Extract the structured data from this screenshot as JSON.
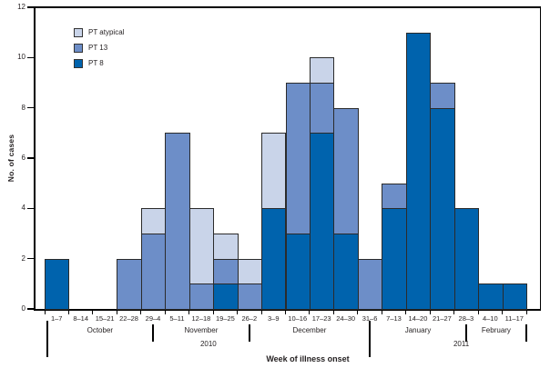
{
  "chart_data": {
    "type": "bar",
    "stacked": true,
    "stack_order": "bottom-to-top",
    "xlabel": "Week of illness onset",
    "ylabel": "No. of cases",
    "ylim": [
      0,
      12
    ],
    "yticks": [
      0,
      2,
      4,
      6,
      8,
      10,
      12
    ],
    "grid": false,
    "categories": [
      "1–7",
      "8–14",
      "15–21",
      "22–28",
      "29–4",
      "5–11",
      "12–18",
      "19–25",
      "26–2",
      "3–9",
      "10–16",
      "17–23",
      "24–30",
      "31–6",
      "7–13",
      "14–20",
      "21–27",
      "28–3",
      "4–10",
      "11–17"
    ],
    "series": [
      {
        "name": "PT 8",
        "color": "#0063ad",
        "values": [
          2,
          0,
          0,
          0,
          0,
          0,
          0,
          1,
          0,
          4,
          3,
          7,
          3,
          0,
          4,
          11,
          8,
          4,
          1,
          1
        ]
      },
      {
        "name": "PT 13",
        "color": "#6d8ec8",
        "values": [
          0,
          0,
          0,
          2,
          3,
          7,
          1,
          1,
          1,
          0,
          6,
          2,
          5,
          2,
          1,
          0,
          1,
          0,
          0,
          0
        ]
      },
      {
        "name": "PT atypical",
        "color": "#c9d4e9",
        "values": [
          0,
          0,
          0,
          0,
          1,
          0,
          3,
          1,
          1,
          3,
          0,
          1,
          0,
          0,
          0,
          0,
          0,
          0,
          0,
          0
        ]
      }
    ],
    "legend": {
      "position": "top-left",
      "items": [
        {
          "label": "PT atypical",
          "color": "#c9d4e9"
        },
        {
          "label": "PT 13",
          "color": "#6d8ec8"
        },
        {
          "label": "PT 8",
          "color": "#0063ad"
        }
      ]
    },
    "months": [
      {
        "label": "October",
        "center_week": 2.3
      },
      {
        "label": "November",
        "center_week": 6.5
      },
      {
        "label": "December",
        "center_week": 11.0
      },
      {
        "label": "January",
        "center_week": 15.5
      },
      {
        "label": "February",
        "center_week": 18.75
      }
    ],
    "month_separators": [
      {
        "week": 0.12,
        "long": true
      },
      {
        "week": 4.5,
        "long": false
      },
      {
        "week": 8.5,
        "long": false
      },
      {
        "week": 13.5,
        "long": true
      },
      {
        "week": 17.5,
        "long": false
      },
      {
        "week": 20.0,
        "long": false
      }
    ],
    "years": [
      {
        "label": "2010",
        "center_week": 6.8
      },
      {
        "label": "2011",
        "center_week": 17.3
      }
    ],
    "colors": {
      "bar_border": "#2b2b2b",
      "axis": "#000000",
      "text": "#231f20",
      "background": "#ffffff"
    }
  }
}
